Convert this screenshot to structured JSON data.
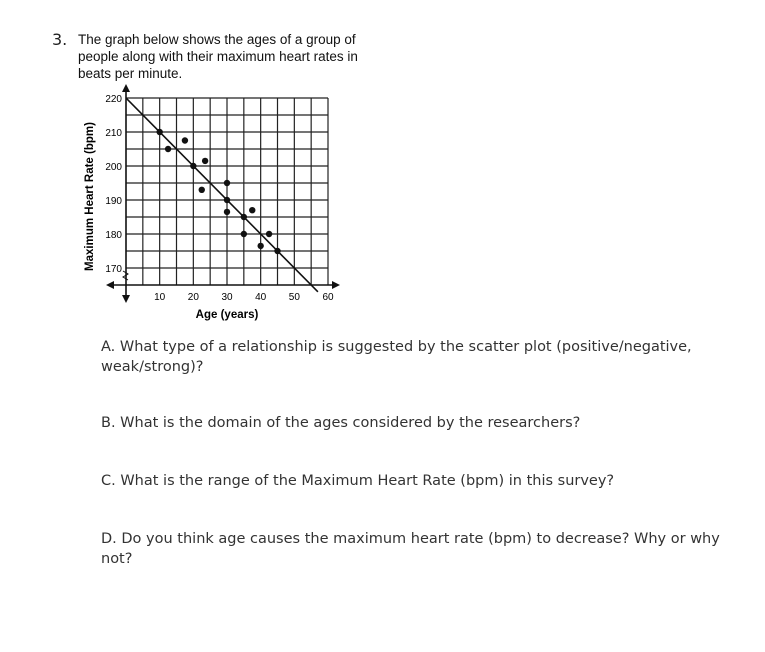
{
  "problem": {
    "number": "3.",
    "stem": "The graph below shows the ages of a group of people along with their maximum heart rates in beats per minute."
  },
  "chart_data": {
    "type": "scatter",
    "xlabel": "Age (years)",
    "ylabel": "Maximum Heart Rate (bpm)",
    "xlim": [
      0,
      60
    ],
    "ylim": [
      165,
      220
    ],
    "x_ticks": [
      "10",
      "20",
      "30",
      "40",
      "50",
      "60"
    ],
    "y_ticks": [
      "220",
      "210",
      "200",
      "190",
      "180",
      "170"
    ],
    "grid": true,
    "points": [
      [
        10,
        210
      ],
      [
        12.5,
        205
      ],
      [
        17.5,
        207.5
      ],
      [
        20,
        200
      ],
      [
        23.5,
        201.5
      ],
      [
        22.5,
        193
      ],
      [
        30,
        195
      ],
      [
        30,
        190
      ],
      [
        30,
        186.5
      ],
      [
        35,
        185
      ],
      [
        37.5,
        187
      ],
      [
        35,
        180
      ],
      [
        40,
        176.5
      ],
      [
        42.5,
        180
      ],
      [
        45,
        175
      ]
    ],
    "trend_line": {
      "from": [
        0,
        220
      ],
      "to": [
        57,
        163
      ]
    }
  },
  "questions": [
    {
      "letter": "A.",
      "text": "What type of a relationship is suggested by the scatter plot (positive/negative, weak/strong)?"
    },
    {
      "letter": "B.",
      "text": "What is the domain of the ages considered by the researchers?"
    },
    {
      "letter": "C.",
      "text": "What is the range of the Maximum Heart Rate (bpm) in this survey?"
    },
    {
      "letter": "D.",
      "text": "Do you think age causes the maximum heart rate (bpm) to decrease? Why or why not?"
    }
  ]
}
